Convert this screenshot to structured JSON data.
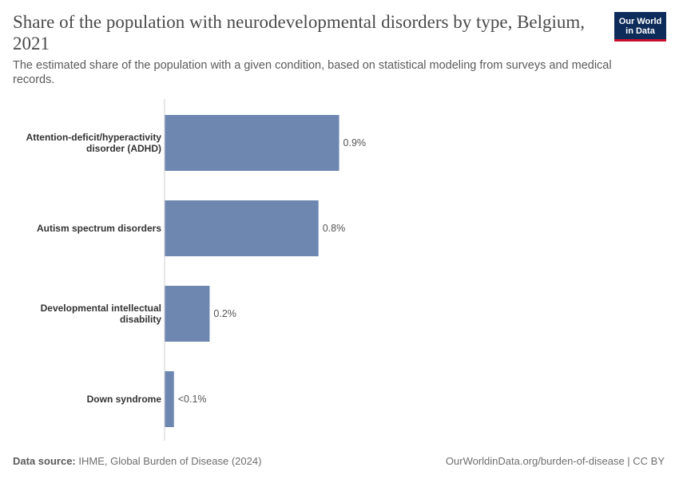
{
  "header": {
    "title": "Share of the population with neurodevelopmental disorders by type, Belgium, 2021",
    "subtitle": "The estimated share of the population with a given condition, based on statistical modeling from surveys and medical records.",
    "logo_line1": "Our World",
    "logo_line2": "in Data"
  },
  "footer": {
    "source_label": "Data source:",
    "source_text": "IHME, Global Burden of Disease (2024)",
    "url_text": "OurWorldinData.org/burden-of-disease | CC BY"
  },
  "colors": {
    "bar": "#6d87b1",
    "axis": "#cfcfcf",
    "label": "#333333",
    "value": "#555555",
    "logo_bg": "#0d2c5a",
    "logo_accent": "#c8102e"
  },
  "chart_data": {
    "type": "bar",
    "orientation": "horizontal",
    "categories": [
      [
        "Attention-deficit/hyperactivity",
        "disorder (ADHD)"
      ],
      [
        "Autism spectrum disorders"
      ],
      [
        "Developmental intellectual",
        "disability"
      ],
      [
        "Down syndrome"
      ]
    ],
    "values": [
      0.93,
      0.82,
      0.24,
      0.05
    ],
    "value_labels": [
      "0.9%",
      "0.8%",
      "0.2%",
      "<0.1%"
    ],
    "xlim": [
      0,
      1.0
    ],
    "unit": "%",
    "grid": false
  }
}
